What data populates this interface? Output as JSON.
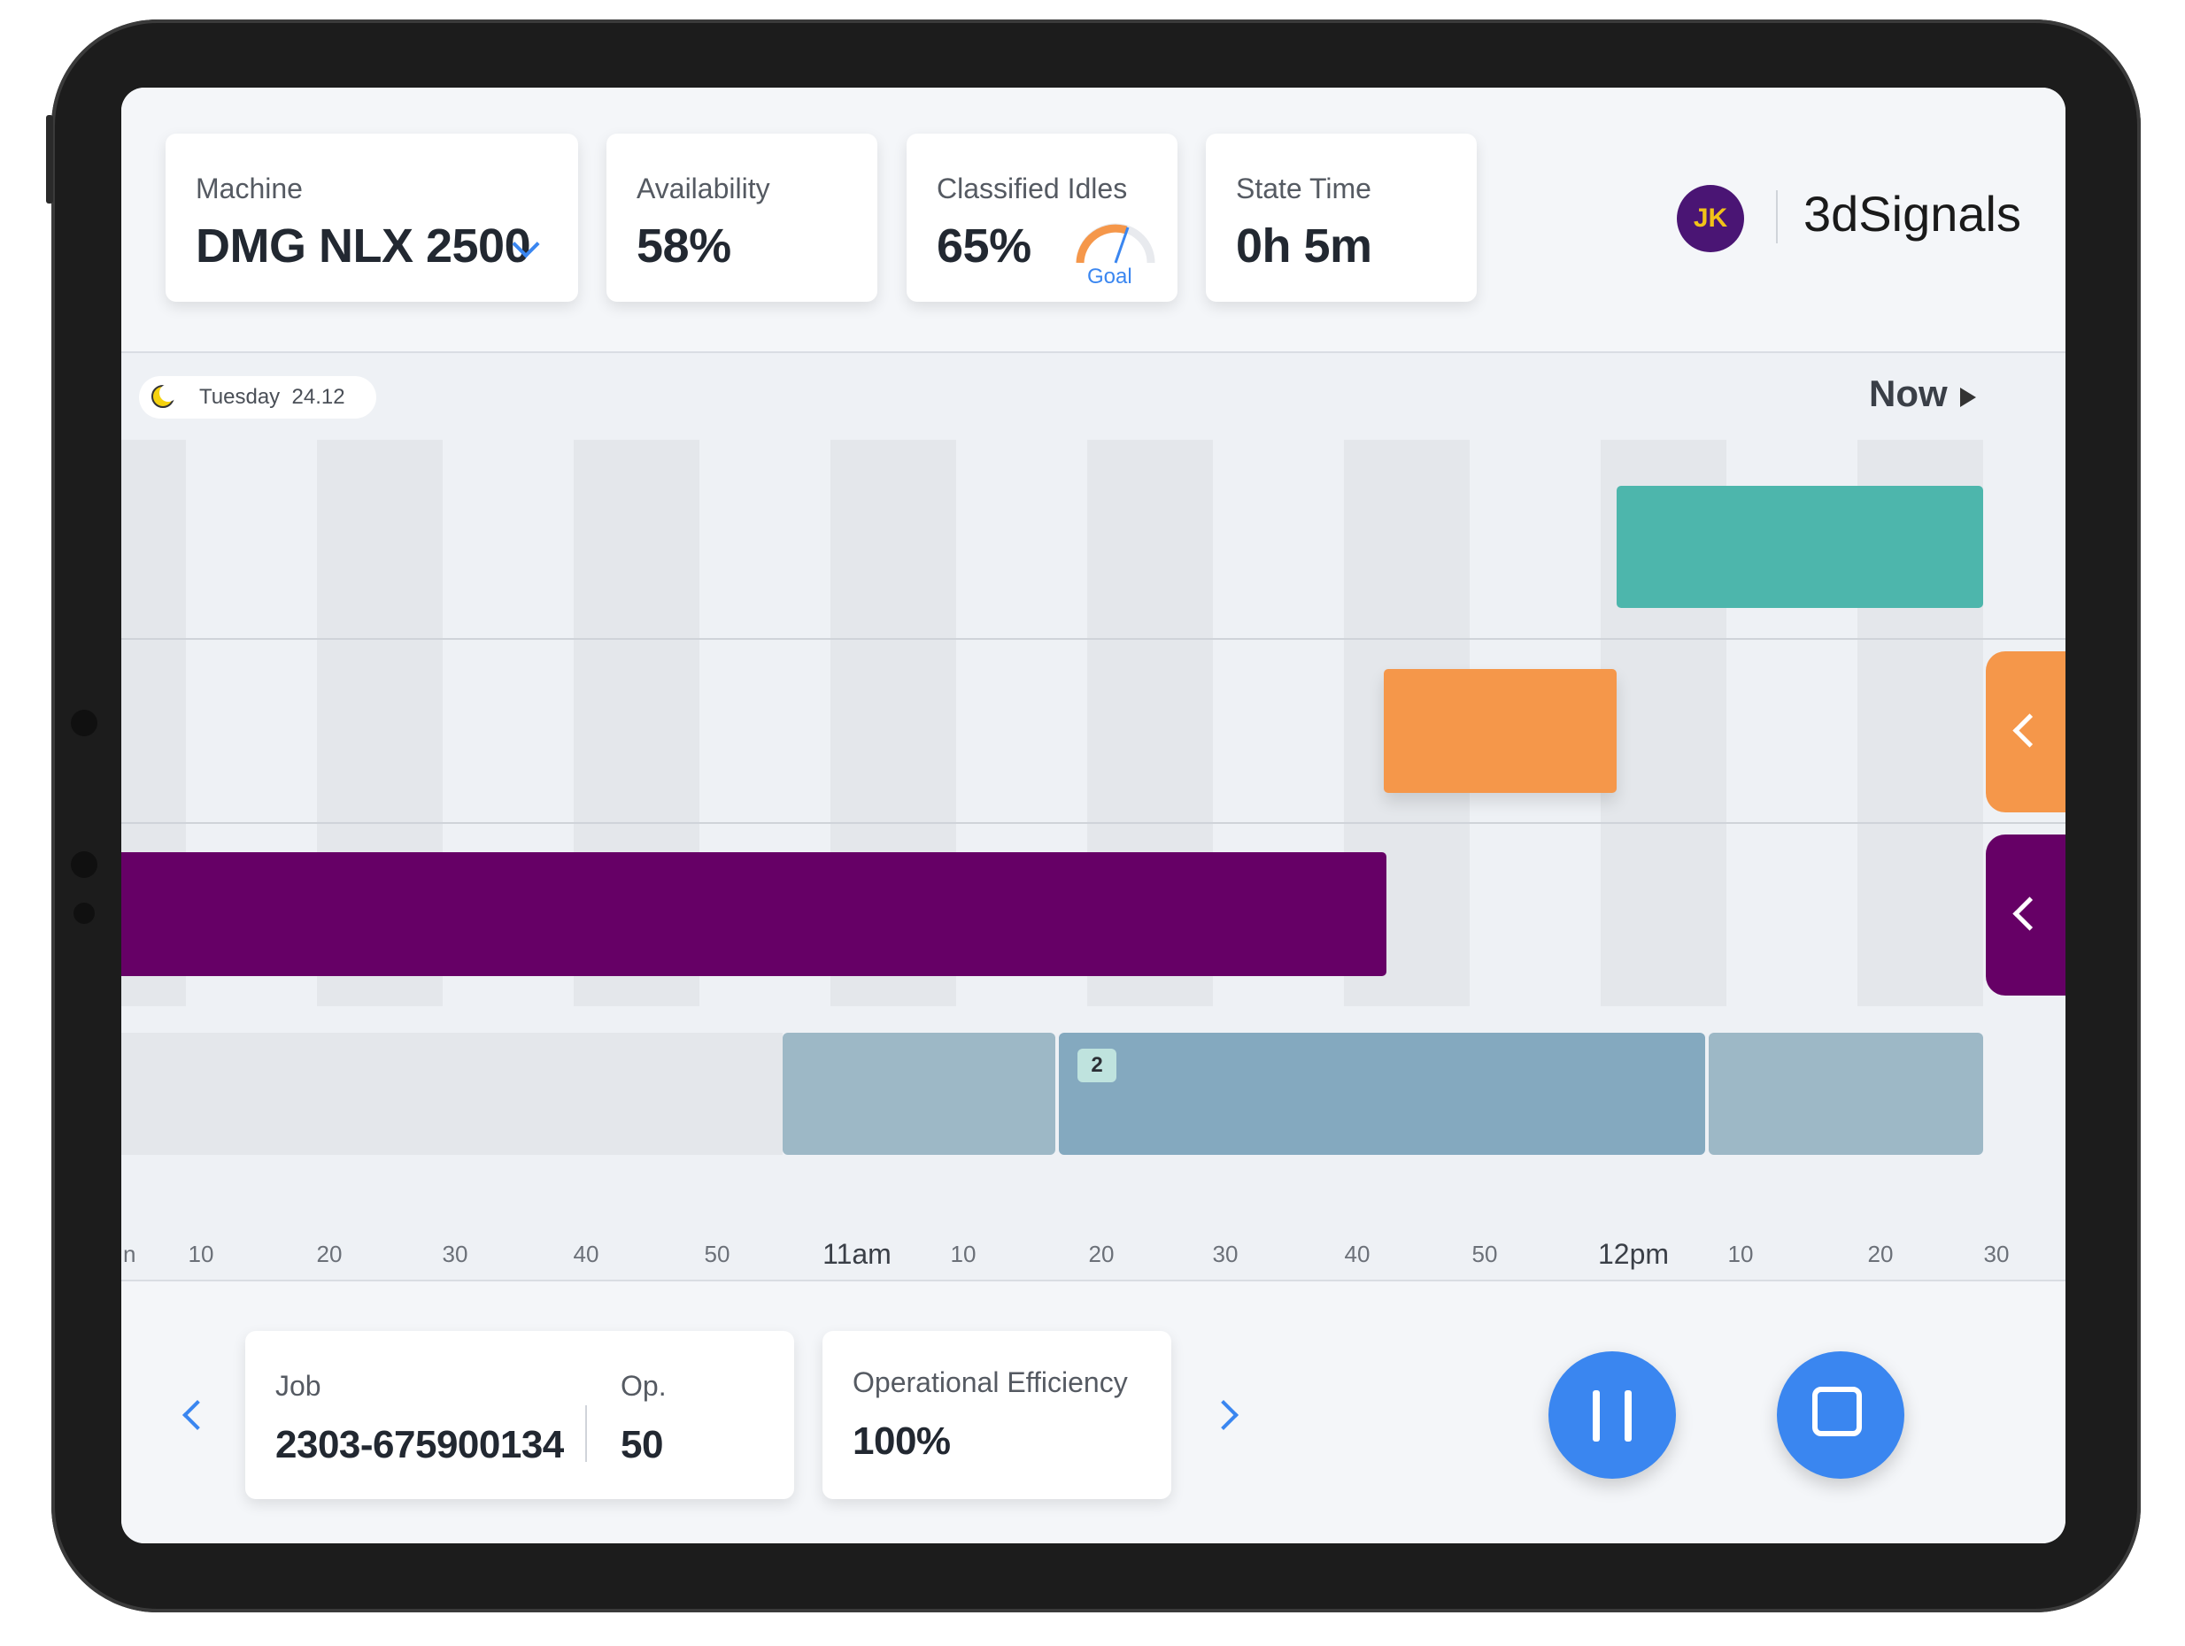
{
  "header": {
    "machine": {
      "label": "Machine",
      "value": "DMG NLX 2500"
    },
    "availability": {
      "label": "Availability",
      "value": "58%"
    },
    "classified_idles": {
      "label": "Classified Idles",
      "value": "65%",
      "goal_label": "Goal"
    },
    "state_time": {
      "label": "State Time",
      "value": "0h 5m"
    },
    "user_initials": "JK",
    "logo_text": "3dSignals"
  },
  "timeline": {
    "date_day": "Tuesday",
    "date": "24.12",
    "now_label": "Now",
    "job_badge": "2",
    "ticks": [
      "10",
      "20",
      "30",
      "40",
      "50",
      "11am",
      "10",
      "20",
      "30",
      "40",
      "50",
      "12pm",
      "10",
      "20",
      "30"
    ],
    "first_tick_partial": "n",
    "colors": {
      "green": "#4db6ac",
      "orange": "#f5974a",
      "purple": "#660066",
      "job": "#84a9bf"
    }
  },
  "footer": {
    "job_label": "Job",
    "job_value": "2303-675900134",
    "op_label": "Op.",
    "op_value": "50",
    "efficiency_label": "Operational Efficiency",
    "efficiency_value": "100%",
    "icons": {
      "prev": "chevron-left-icon",
      "next": "chevron-right-icon",
      "pause": "pause-icon",
      "stop": "stop-icon"
    }
  }
}
